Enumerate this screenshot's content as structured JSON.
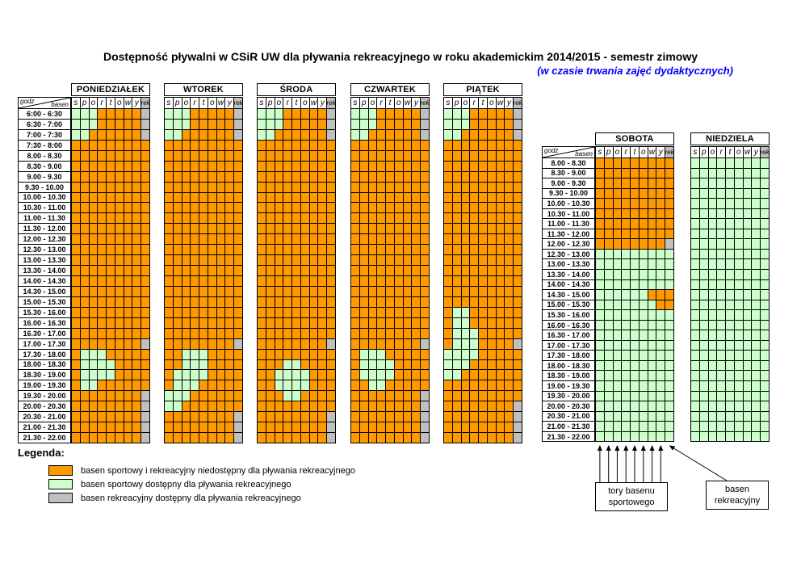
{
  "title": "Dostępność pływalni w CSiR UW dla pływania rekreacyjnego w roku akademickim 2014/2015 - semestr zimowy",
  "subtitle": "(w czasie trwania zajęć dydaktycznych)",
  "legend": {
    "heading": "Legenda:",
    "items": [
      {
        "code": "O",
        "color": "#FF9900",
        "label": "basen sportowy i rekreacyjny niedostępny dla pływania rekreacyjnego"
      },
      {
        "code": "G",
        "color": "#CCFFCC",
        "label": "basen sportowy dostępny dla pływania rekreacyjnego"
      },
      {
        "code": "S",
        "color": "#C0C0C0",
        "label": "basen rekreacyjny dostępny dla pływania rekreacyjnego"
      }
    ]
  },
  "annotations": {
    "sport_lanes_line1": "tory basenu",
    "sport_lanes_line2": "sportowego",
    "rek_line1": "basen",
    "rek_line2": "rekreacyjny"
  },
  "chart_data": {
    "type": "heatmap",
    "title": "Dostępność pływalni w CSiR UW dla pływania rekreacyjnego w roku akademickim 2014/2015 - semestr zimowy",
    "subtitle": "(w czasie trwania zajęć dydaktycznych)",
    "corner": {
      "top": "godz",
      "bottom": "basen"
    },
    "lane_letters": [
      "s",
      "p",
      "o",
      "r",
      "t",
      "o",
      "w",
      "y"
    ],
    "rek_column_label": "rek",
    "colors": {
      "O": "#FF9900",
      "G": "#CCFFCC",
      "S": "#C0C0C0"
    },
    "cell_codes": {
      "O": "basen sportowy i rekreacyjny niedostępny dla pływania rekreacyjnego",
      "G": "basen sportowy dostępny dla pływania rekreacyjnego",
      "S": "basen rekreacyjny dostępny dla pływania rekreacyjnego"
    },
    "weekday_times": [
      "6:00 - 6:30",
      "6:30 - 7:00",
      "7:00 - 7:30",
      "7:30 - 8:00",
      "8.00 - 8.30",
      "8.30 - 9.00",
      "9.00 - 9.30",
      "9.30 - 10.00",
      "10.00 - 10.30",
      "10.30 - 11.00",
      "11.00 - 11.30",
      "11.30 - 12.00",
      "12.00 - 12.30",
      "12.30 - 13.00",
      "13.00 - 13.30",
      "13.30 - 14.00",
      "14.00 - 14.30",
      "14.30 - 15.00",
      "15.00 - 15.30",
      "15.30 - 16.00",
      "16.00 - 16.30",
      "16.30 - 17.00",
      "17.00 - 17.30",
      "17.30 - 18.00",
      "18.00 - 18.30",
      "18.30 - 19.00",
      "19.00 - 19.30",
      "19.30 - 20.00",
      "20.00 - 20.30",
      "20.30 - 21.00",
      "21.00 - 21.30",
      "21.30 - 22.00"
    ],
    "weekend_times": [
      "8.00 - 8.30",
      "8.30 - 9.00",
      "9.00 - 9.30",
      "9.30 - 10.00",
      "10.00 - 10.30",
      "10.30 - 11.00",
      "11.00 - 11.30",
      "11.30 - 12.00",
      "12.00 - 12.30",
      "12.30 - 13.00",
      "13.00 - 13.30",
      "13.30 - 14.00",
      "14.00 - 14.30",
      "14.30 - 15.00",
      "15.00 - 15.30",
      "15.30 - 16.00",
      "16.00 - 16.30",
      "16.30 - 17.00",
      "17.00 - 17.30",
      "17.30 - 18.00",
      "18.00 - 18.30",
      "18.30 - 19.00",
      "19.00 - 19.30",
      "19.30 - 20.00",
      "20.00 - 20.30",
      "20.30 - 21.00",
      "21.00 - 21.30",
      "21.30 - 22.00"
    ],
    "weekday_days": [
      {
        "name": "PONIEDZIAŁEK",
        "rows": [
          "GGGOOOOOS",
          "GGGOOOOOS",
          "GGOOOOOOS",
          "OOOOOOOOO",
          "OOOOOOOOO",
          "OOOOOOOOO",
          "OOOOOOOOO",
          "OOOOOOOOO",
          "OOOOOOOOO",
          "OOOOOOOOO",
          "OOOOOOOOO",
          "OOOOOOOOO",
          "OOOOOOOOO",
          "OOOOOOOOO",
          "OOOOOOOOO",
          "OOOOOOOOO",
          "OOOOOOOOO",
          "OOOOOOOOO",
          "OOOOOOOOO",
          "OOOOOOOOO",
          "OOOOOOOOO",
          "OOOOOOOOO",
          "OOOOOOOOS",
          "OGGGOOOOO",
          "OGGGGOOOO",
          "OGGGGOOOO",
          "OGGOOOOOO",
          "OOOOOOOOS",
          "OOOOOOOOS",
          "OOOOOOOOS",
          "OOOOOOOOS",
          "OOOOOOOOS"
        ]
      },
      {
        "name": "WTOREK",
        "rows": [
          "GGGOOOOOS",
          "GGGOOOOOS",
          "GGOOOOOOS",
          "OOOOOOOOO",
          "OOOOOOOOO",
          "OOOOOOOOO",
          "OOOOOOOOO",
          "OOOOOOOOO",
          "OOOOOOOOO",
          "OOOOOOOOO",
          "OOOOOOOOO",
          "OOOOOOOOO",
          "OOOOOOOOO",
          "OOOOOOOOO",
          "OOOOOOOOO",
          "OOOOOOOOO",
          "OOOOOOOOO",
          "OOOOOOOOO",
          "OOOOOOOOO",
          "OOOOOOOOO",
          "OOOOOOOOO",
          "OOOOOOOOO",
          "OOOOOOOOS",
          "OOGGGOOOO",
          "OOGGGOOOO",
          "OGGGGOOOO",
          "OGGGOOOOO",
          "GGGOOOOOO",
          "GGOOOOOOO",
          "OOOOOOOOS",
          "OOOOOOOOS",
          "OOOOOOOOS"
        ]
      },
      {
        "name": "ŚRODA",
        "rows": [
          "GGGOOOOOS",
          "GGGOOOOOS",
          "GGOOOOOOS",
          "OOOOOOOOO",
          "OOOOOOOOO",
          "OOOOOOOOO",
          "OOOOOOOOO",
          "OOOOOOOOO",
          "OOOOOOOOO",
          "OOOOOOOOO",
          "OOOOOOOOO",
          "OOOOOOOOO",
          "OOOOOOOOO",
          "OOOOOOOOO",
          "OOOOOOOOO",
          "OOOOOOOOO",
          "OOOOOOOOO",
          "OOOOOOOOO",
          "OOOOOOOOO",
          "OOOOOOOOO",
          "OOOOOOOOO",
          "OOOOOOOOO",
          "OOOOOOOOS",
          "OOOOOOOOO",
          "OOOGGOOOO",
          "OOGGGGOOO",
          "OOGGGGOOO",
          "OOOGGOOOO",
          "OOOOOOOOO",
          "OOOOOOOOS",
          "OOOOOOOOS",
          "OOOOOOOOS"
        ]
      },
      {
        "name": "CZWARTEK",
        "rows": [
          "GGGOOOOOS",
          "GGGOOOOOS",
          "GGOOOOOOS",
          "OOOOOOOOO",
          "OOOOOOOOO",
          "OOOOOOOOO",
          "OOOOOOOOO",
          "OOOOOOOOO",
          "OOOOOOOOO",
          "OOOOOOOOO",
          "OOOOOOOOO",
          "OOOOOOOOO",
          "OOOOOOOOO",
          "OOOOOOOOO",
          "OOOOOOOOO",
          "OOOOOOOOO",
          "OOOOOOOOO",
          "OOOOOOOOO",
          "OOOOOOOOO",
          "OOOOOOOOO",
          "OOOOOOOOO",
          "OOOOOOOOO",
          "OOOOOOOOS",
          "OGGGOOOOO",
          "OGGGGOOOO",
          "OGGGGOOOO",
          "OOGGOOOOO",
          "OOOOOOOOS",
          "OOOOOOOOS",
          "OOOOOOOOS",
          "OOOOOOOOS",
          "OOOOOOOOS"
        ]
      },
      {
        "name": "PIĄTEK",
        "rows": [
          "GGGOOOOOS",
          "GGGOOOOOS",
          "GGOOOOOOS",
          "OOOOOOOOO",
          "OOOOOOOOO",
          "OOOOOOOOO",
          "OOOOOOOOO",
          "OOOOOOOOO",
          "OOOOOOOOO",
          "OOOOOOOOO",
          "OOOOOOOOO",
          "OOOOOOOOO",
          "OOOOOOOOO",
          "OOOOOOOOO",
          "OOOOOOOOO",
          "OOOOOOOOO",
          "OOOOOOOOO",
          "OOOOOOOOO",
          "OOOOOOOOO",
          "OGGOOOOOO",
          "OGGOOOOOO",
          "OGGGOOOOO",
          "OGGGOOOOS",
          "GGGGOOOOO",
          "GGGOOOOOO",
          "GGOOOOOOO",
          "OOOOOOOOO",
          "OOOOOOOOO",
          "OOOOOOOOS",
          "OOOOOOOOS",
          "OOOOOOOOS",
          "OOOOOOOOS"
        ]
      }
    ],
    "weekend_days": [
      {
        "name": "SOBOTA",
        "rows": [
          "OOOOOOOOO",
          "OOOOOOOOO",
          "OOOOOOOOO",
          "OOOOOOOOO",
          "OOOOOOOOO",
          "OOOOOOOOO",
          "OOOOOOOOO",
          "OOOOOOOOO",
          "OOOOOOOOS",
          "GGGGGGGGG",
          "GGGGGGGGG",
          "GGGGGGGGG",
          "GGGGGGGGG",
          "GGGGGGOOO",
          "GGGGGGGOO",
          "GGGGGGGGG",
          "GGGGGGGGG",
          "GGGGGGGGG",
          "GGGGGGGGG",
          "GGGGGGGGG",
          "GGGGGGGGG",
          "GGGGGGGGG",
          "GGGGGGGGG",
          "GGGGGGGGG",
          "GGGGGGGGG",
          "GGGGGGGGG",
          "GGGGGGGGG",
          "GGGGGGGGG"
        ]
      },
      {
        "name": "NIEDZIELA",
        "rows": [
          "GGGGGGGGG",
          "GGGGGGGGG",
          "GGGGGGGGG",
          "GGGGGGGGG",
          "GGGGGGGGG",
          "GGGGGGGGG",
          "GGGGGGGGG",
          "GGGGGGGGG",
          "GGGGGGGGG",
          "GGGGGGGGG",
          "GGGGGGGGG",
          "GGGGGGGGG",
          "GGGGGGGGG",
          "GGGGGGGGG",
          "GGGGGGGGG",
          "GGGGGGGGG",
          "GGGGGGGGG",
          "GGGGGGGGG",
          "GGGGGGGGG",
          "GGGGGGGGG",
          "GGGGGGGGG",
          "GGGGGGGGG",
          "GGGGGGGGG",
          "GGGGGGGGG",
          "GGGGGGGGG",
          "GGGGGGGGG",
          "GGGGGGGGG",
          "GGGGGGGGG"
        ]
      }
    ]
  }
}
